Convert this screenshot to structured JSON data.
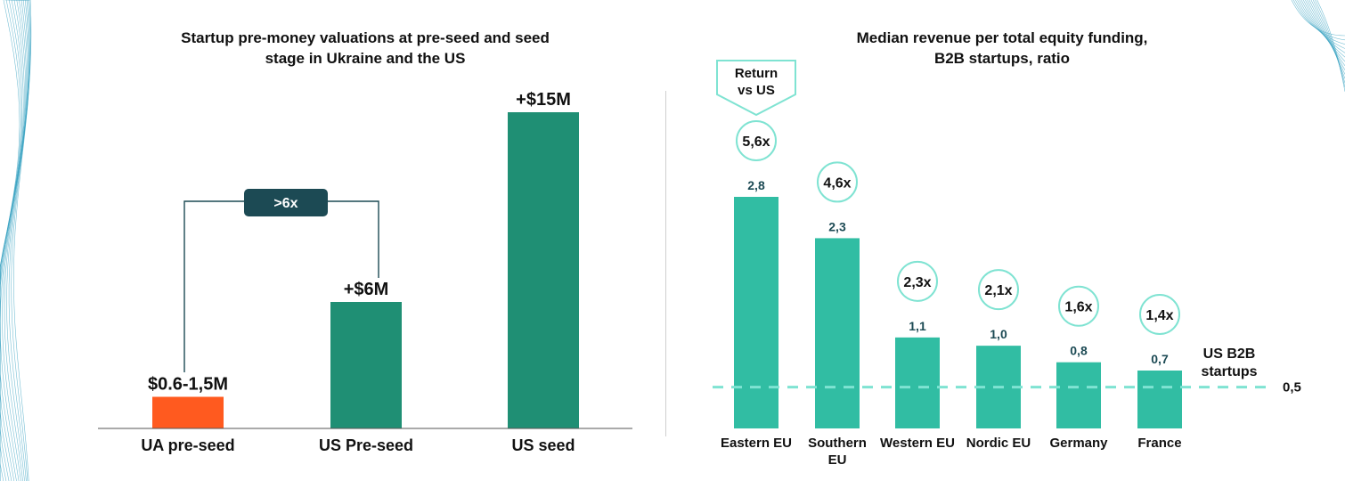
{
  "colors": {
    "ua_bar": "#ff5a1f",
    "us_bar": "#1f8f74",
    "badge_bg": "#1c4a54",
    "revenue_bar": "#31bda3",
    "circle_border": "#7fe3d2",
    "dashed_line": "#7fe3d2",
    "value_label": "#1c4a54",
    "deco_lines": "#39a3c2"
  },
  "chart_data": [
    {
      "type": "bar",
      "title_lines": [
        "Startup pre-money valuations at pre-seed and seed",
        "stage in Ukraine and the US"
      ],
      "categories": [
        "UA pre-seed",
        "US Pre-seed",
        "US seed"
      ],
      "values": [
        1.5,
        6,
        15
      ],
      "value_labels": [
        "$0.6-1,5M",
        "+$6M",
        "+$15M"
      ],
      "ylim": [
        0,
        16.3
      ],
      "comparison_badge": {
        "text": ">6x",
        "from": "UA pre-seed",
        "to": "US Pre-seed"
      },
      "grid": false,
      "legend": "none"
    },
    {
      "type": "bar",
      "title_lines": [
        "Median revenue per total equity funding,",
        "B2B startups, ratio"
      ],
      "categories": [
        {
          "lines": [
            "Eastern EU"
          ]
        },
        {
          "lines": [
            "Southern",
            "EU"
          ]
        },
        {
          "lines": [
            "Western EU"
          ]
        },
        {
          "lines": [
            "Nordic EU"
          ]
        },
        {
          "lines": [
            "Germany"
          ]
        },
        {
          "lines": [
            "France"
          ]
        }
      ],
      "values": [
        2.8,
        2.3,
        1.1,
        1.0,
        0.8,
        0.7
      ],
      "value_labels": [
        "2,8",
        "2,3",
        "1,1",
        "1,0",
        "0,8",
        "0,7"
      ],
      "return_multiples": [
        "5,6x",
        "4,6x",
        "2,3x",
        "2,1x",
        "1,6x",
        "1,4x"
      ],
      "return_callout_lines": [
        "Return",
        "vs US"
      ],
      "reference_line": {
        "value": 0.5,
        "label": "0,5",
        "name_lines": [
          "US B2B",
          "startups"
        ]
      },
      "ylim": [
        0,
        2.8
      ],
      "grid": false,
      "legend": "none"
    }
  ]
}
